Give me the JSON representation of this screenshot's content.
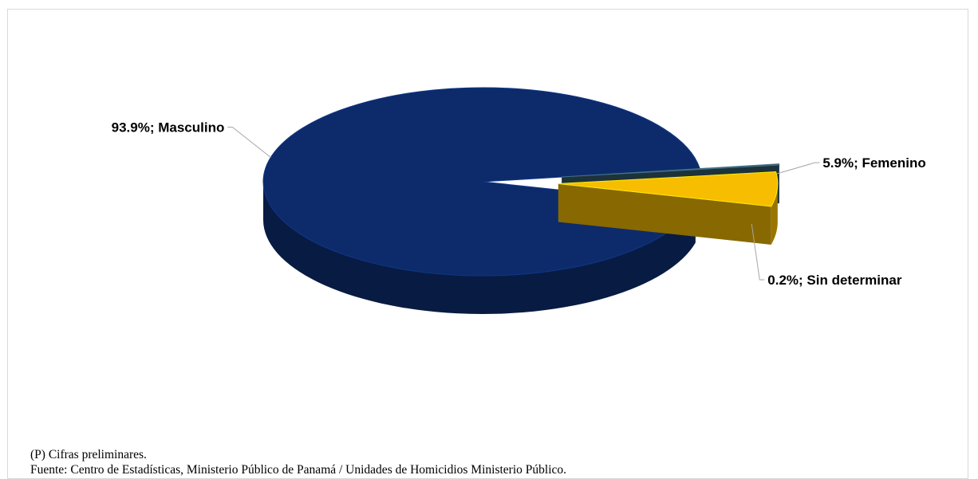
{
  "chart_data": {
    "type": "pie",
    "categories": [
      "Masculino",
      "Femenino",
      "Sin determinar"
    ],
    "values": [
      93.9,
      5.9,
      0.2
    ],
    "labels": [
      "93.9%; Masculino",
      "5.9%; Femenino",
      "0.2%; Sin determinar"
    ],
    "colors": [
      "#0d2b6b",
      "#f7bd00",
      "#345a6b"
    ],
    "legend": "none"
  },
  "notes": {
    "preliminary": "(P) Cifras preliminares.",
    "source": "Fuente: Centro de Estadísticas, Ministerio Público de Panamá / Unidades de Homicidios Ministerio Público."
  }
}
